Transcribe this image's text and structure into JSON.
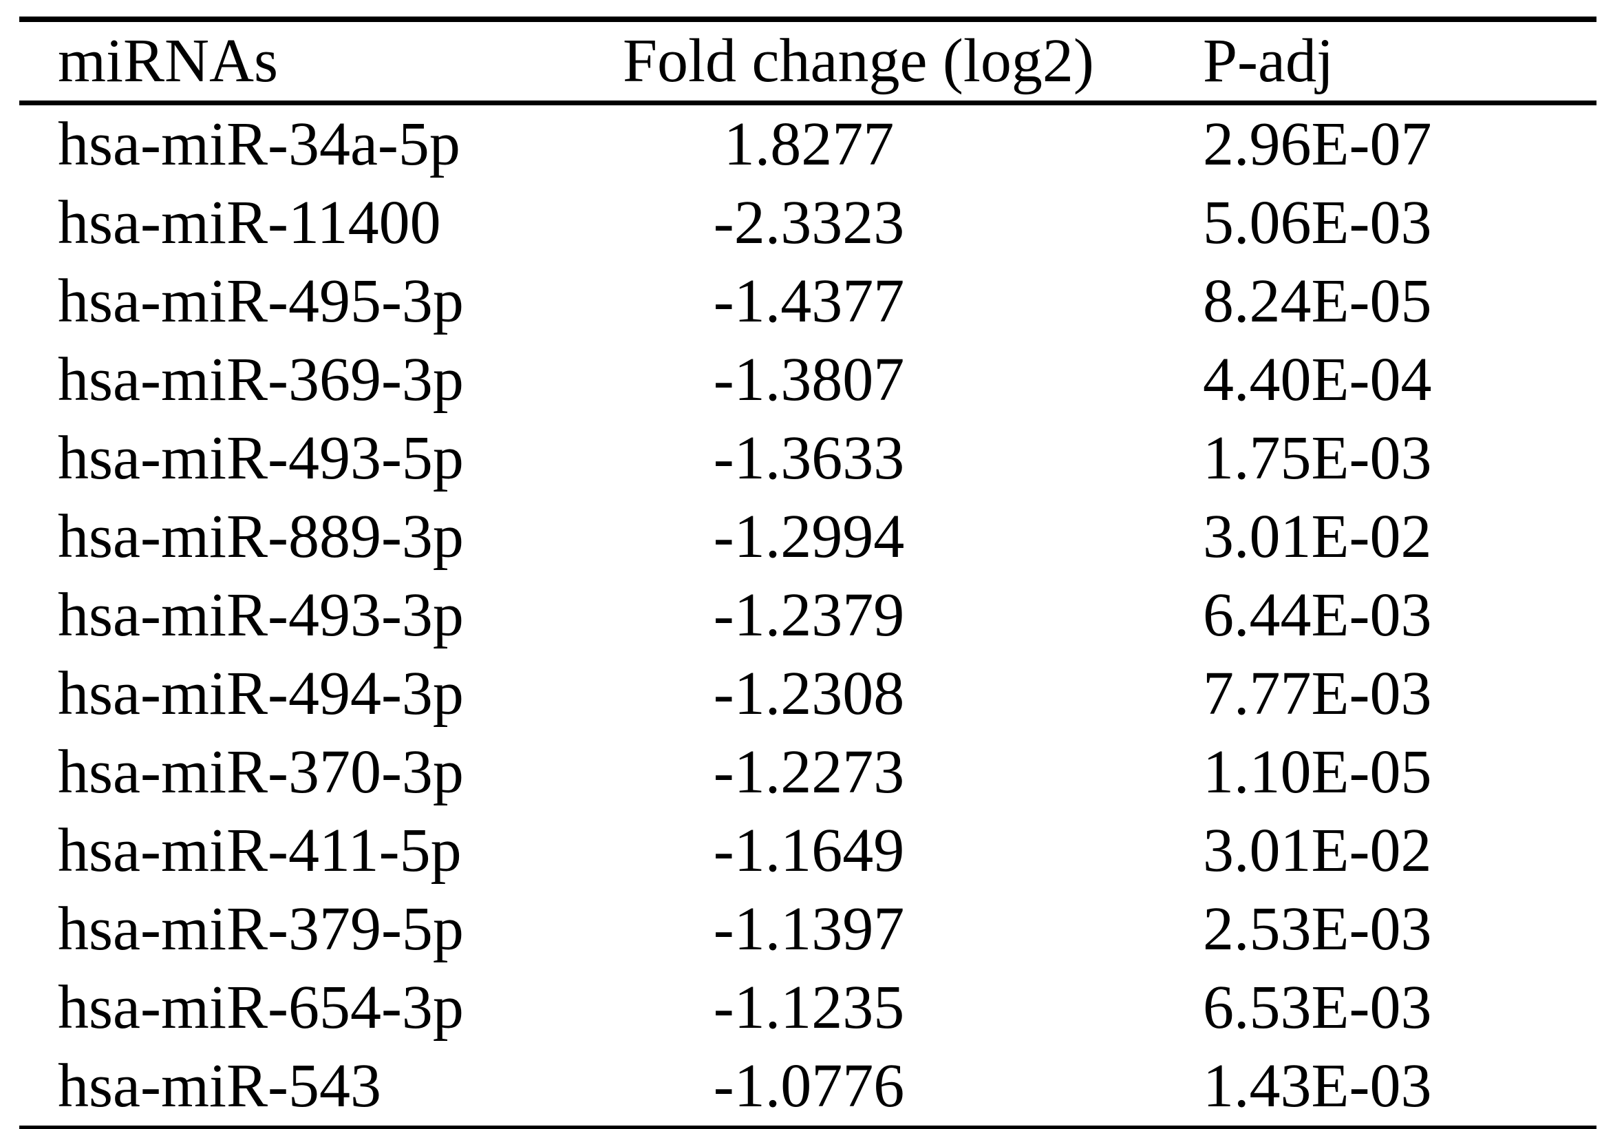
{
  "table": {
    "headers": [
      "miRNAs",
      "Fold change (log2)",
      "P-adj"
    ],
    "rows": [
      {
        "mirna": "hsa-miR-34a-5p",
        "fold_change": "1.8277",
        "p_adj": "2.96E-07"
      },
      {
        "mirna": "hsa-miR-11400",
        "fold_change": "-2.3323",
        "p_adj": "5.06E-03"
      },
      {
        "mirna": "hsa-miR-495-3p",
        "fold_change": "-1.4377",
        "p_adj": "8.24E-05"
      },
      {
        "mirna": "hsa-miR-369-3p",
        "fold_change": "-1.3807",
        "p_adj": "4.40E-04"
      },
      {
        "mirna": "hsa-miR-493-5p",
        "fold_change": "-1.3633",
        "p_adj": "1.75E-03"
      },
      {
        "mirna": "hsa-miR-889-3p",
        "fold_change": "-1.2994",
        "p_adj": "3.01E-02"
      },
      {
        "mirna": "hsa-miR-493-3p",
        "fold_change": "-1.2379",
        "p_adj": "6.44E-03"
      },
      {
        "mirna": "hsa-miR-494-3p",
        "fold_change": "-1.2308",
        "p_adj": "7.77E-03"
      },
      {
        "mirna": "hsa-miR-370-3p",
        "fold_change": "-1.2273",
        "p_adj": "1.10E-05"
      },
      {
        "mirna": "hsa-miR-411-5p",
        "fold_change": "-1.1649",
        "p_adj": "3.01E-02"
      },
      {
        "mirna": "hsa-miR-379-5p",
        "fold_change": "-1.1397",
        "p_adj": "2.53E-03"
      },
      {
        "mirna": "hsa-miR-654-3p",
        "fold_change": "-1.1235",
        "p_adj": "6.53E-03"
      },
      {
        "mirna": "hsa-miR-543",
        "fold_change": "-1.0776",
        "p_adj": "1.43E-03"
      }
    ]
  },
  "colors": {
    "text": "#000000",
    "background": "#ffffff",
    "rule": "#000000"
  }
}
